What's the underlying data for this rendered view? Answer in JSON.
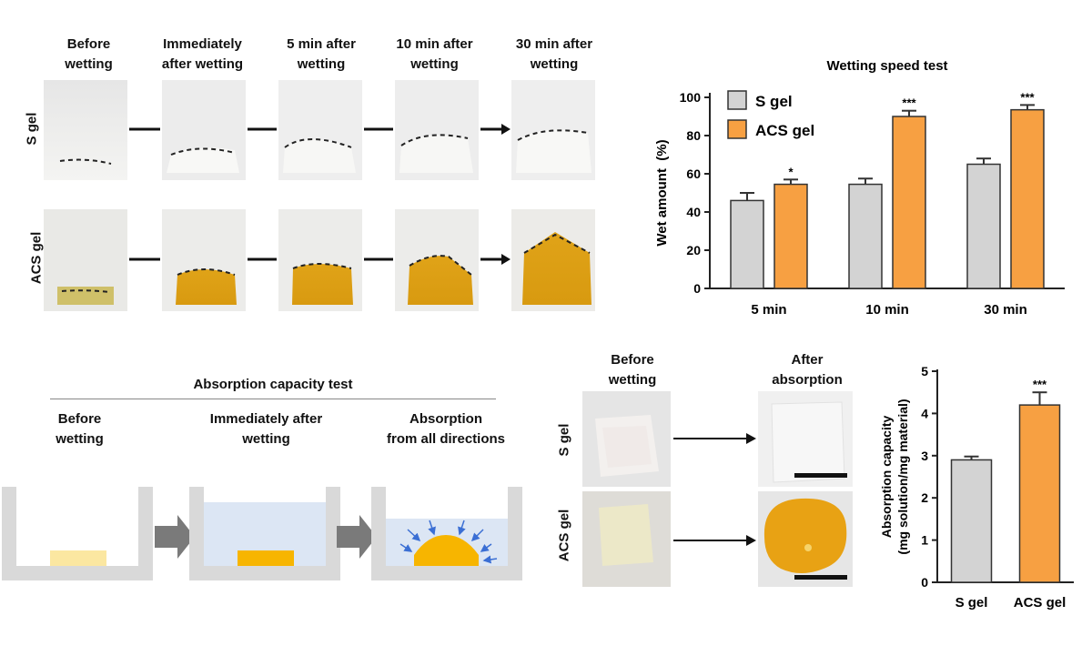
{
  "top_panel": {
    "columns": [
      "Before\nwetting",
      "Immediately\nafter wetting",
      "5 min after\nwetting",
      "10 min after\nwetting",
      "30 min after\nwetting"
    ],
    "rows": [
      "S gel",
      "ACS gel"
    ]
  },
  "absorption_diagram": {
    "title": "Absorption capacity test",
    "steps": [
      "Before\nwetting",
      "Immediately after\nwetting",
      "Absorption\nfrom all directions"
    ]
  },
  "photo_panel": {
    "columns": [
      "Before\nwetting",
      "After\nabsorption"
    ],
    "rows": [
      "S gel",
      "ACS gel"
    ]
  },
  "colors": {
    "s_gel": "#d3d3d3",
    "acs_gel": "#f7a042",
    "bar_stroke": "#333333",
    "yellow_light": "#fbe7a1",
    "yellow": "#f7b500",
    "water": "#dce6f4",
    "arrow": "#7a7a7a"
  },
  "chart_data": [
    {
      "type": "bar",
      "title": "Wetting speed test",
      "categories": [
        "5 min",
        "10 min",
        "30 min"
      ],
      "series": [
        {
          "name": "S gel",
          "values": [
            46,
            54.5,
            65
          ],
          "errors": [
            4,
            3,
            3
          ]
        },
        {
          "name": "ACS gel",
          "values": [
            54.5,
            90,
            93.5
          ],
          "errors": [
            2.5,
            3,
            2.5
          ]
        }
      ],
      "significance": [
        "*",
        "***",
        "***"
      ],
      "ylabel": "Wet amount  (%)",
      "ylim": [
        0,
        100
      ],
      "yticks": [
        0,
        20,
        40,
        60,
        80,
        100
      ],
      "legend": "top-left"
    },
    {
      "type": "bar",
      "title": "",
      "categories": [
        "S gel",
        "ACS gel"
      ],
      "values": [
        2.9,
        4.2
      ],
      "errors": [
        0.08,
        0.3
      ],
      "significance": [
        "",
        "***"
      ],
      "ylabel": "Absorption capacity\n(mg solution/mg material)",
      "ylim": [
        0,
        5
      ],
      "yticks": [
        0,
        1,
        2,
        3,
        4,
        5
      ]
    }
  ]
}
